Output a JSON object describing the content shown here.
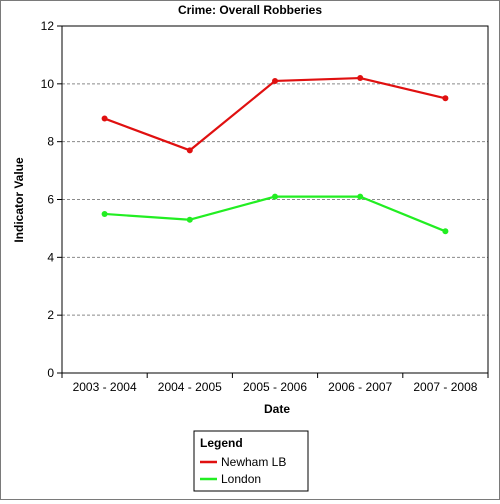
{
  "chart_data": {
    "type": "line",
    "title": "Crime: Overall Robberies",
    "xlabel": "Date",
    "ylabel": "Indicator Value",
    "categories": [
      "2003 - 2004",
      "2004 - 2005",
      "2005 - 2006",
      "2006 - 2007",
      "2007 - 2008"
    ],
    "ylim": [
      0,
      12
    ],
    "yticks": [
      "0",
      "2",
      "4",
      "6",
      "8",
      "10",
      "12"
    ],
    "grid": true,
    "legend": {
      "title": "Legend",
      "position": "bottom-center"
    },
    "series": [
      {
        "name": "Newham LB",
        "color": "#e01010",
        "values": [
          8.8,
          7.7,
          10.1,
          10.2,
          9.5
        ]
      },
      {
        "name": "London",
        "color": "#22ee22",
        "values": [
          5.5,
          5.3,
          6.1,
          6.1,
          4.9
        ]
      }
    ]
  }
}
